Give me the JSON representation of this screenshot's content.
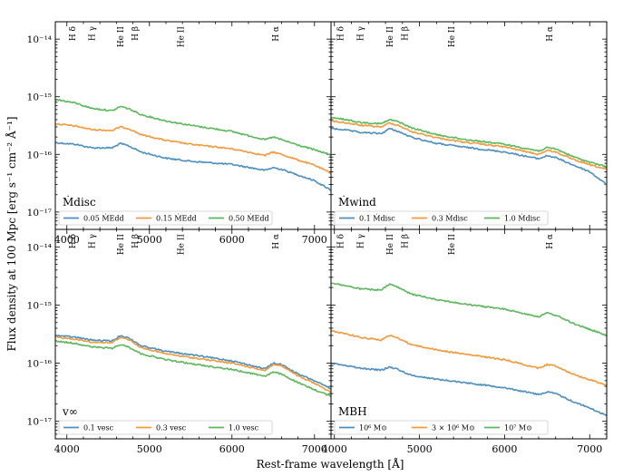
{
  "figure": {
    "ylabel": "Flux density at 100 Mpc [erg s⁻¹ cm⁻² Å⁻¹]",
    "xlabel": "Rest-frame wavelength [Å]"
  },
  "line_markers": [
    {
      "label": "H δ",
      "wavelength": 4102
    },
    {
      "label": "H γ",
      "wavelength": 4340
    },
    {
      "label": "He II",
      "wavelength": 4686
    },
    {
      "label": "H β",
      "wavelength": 4861
    },
    {
      "label": "He II",
      "wavelength": 5412
    },
    {
      "label": "H α",
      "wavelength": 6563
    }
  ],
  "chart_data": [
    {
      "type": "line",
      "panel": "top-left",
      "xlim": [
        3860,
        7200
      ],
      "ylim": [
        5e-18,
        2e-14
      ],
      "yscale": "log",
      "xticks": [
        4000,
        5000,
        6000,
        7000
      ],
      "yticks": [
        "10⁻¹⁴",
        "10⁻¹⁵",
        "10⁻¹⁶",
        "10⁻¹⁷"
      ],
      "panel_label": "Ṁdisc",
      "legend": "bottom-left",
      "series": [
        {
          "name": "0.05 ṀEdd",
          "color": "#4c8fc0",
          "x": [
            3860,
            4100,
            4300,
            4550,
            4650,
            4750,
            4900,
            5200,
            5500,
            6000,
            6400,
            6500,
            6600,
            6800,
            7000,
            7200
          ],
          "y": [
            1.6e-16,
            1.5e-16,
            1.3e-16,
            1.3e-16,
            1.55e-16,
            1.4e-16,
            1.1e-16,
            8.6e-17,
            7.6e-17,
            6.7e-17,
            5.3e-17,
            5.9e-17,
            5.5e-17,
            4.4e-17,
            3.5e-17,
            2.4e-17
          ]
        },
        {
          "name": "0.15 ṀEdd",
          "color": "#f39a3c",
          "x": [
            3860,
            4100,
            4300,
            4550,
            4650,
            4750,
            4900,
            5200,
            5500,
            6000,
            6400,
            6500,
            6600,
            6800,
            7000,
            7200
          ],
          "y": [
            3.4e-16,
            3.1e-16,
            2.7e-16,
            2.6e-16,
            3e-16,
            2.8e-16,
            2.2e-16,
            1.75e-16,
            1.5e-16,
            1.25e-16,
            9.6e-17,
            1.1e-16,
            1e-16,
            8e-17,
            6.5e-17,
            4.7e-17
          ]
        },
        {
          "name": "0.50 ṀEdd",
          "color": "#5cb85c",
          "x": [
            3860,
            4100,
            4300,
            4550,
            4650,
            4750,
            4900,
            5200,
            5500,
            6000,
            6400,
            6500,
            6600,
            6800,
            7000,
            7200
          ],
          "y": [
            9e-16,
            7.8e-16,
            6.3e-16,
            5.7e-16,
            6.8e-16,
            6.2e-16,
            4.9e-16,
            3.8e-16,
            3.2e-16,
            2.5e-16,
            1.8e-16,
            2e-16,
            1.8e-16,
            1.45e-16,
            1.2e-16,
            9.8e-17
          ]
        }
      ]
    },
    {
      "type": "line",
      "panel": "top-right",
      "xlim": [
        3960,
        7200
      ],
      "ylim": [
        5e-18,
        2e-14
      ],
      "yscale": "log",
      "panel_label": "Ṁwind",
      "legend": "bottom-left",
      "series": [
        {
          "name": "0.1 Ṁdisc",
          "color": "#4c8fc0",
          "x": [
            3960,
            4100,
            4300,
            4550,
            4650,
            4750,
            4900,
            5200,
            5500,
            6000,
            6400,
            6500,
            6600,
            6800,
            7000,
            7200
          ],
          "y": [
            2.8e-16,
            2.7e-16,
            2.4e-16,
            2.3e-16,
            2.8e-16,
            2.5e-16,
            2e-16,
            1.55e-16,
            1.35e-16,
            1.1e-16,
            8.4e-17,
            9.5e-17,
            8.8e-17,
            6.6e-17,
            5e-17,
            3e-17
          ]
        },
        {
          "name": "0.3 Ṁdisc",
          "color": "#f39a3c",
          "x": [
            3960,
            4100,
            4300,
            4550,
            4650,
            4750,
            4900,
            5200,
            5500,
            6000,
            6400,
            6500,
            6600,
            6800,
            7000,
            7200
          ],
          "y": [
            3.8e-16,
            3.6e-16,
            3.2e-16,
            3e-16,
            3.5e-16,
            3.2e-16,
            2.5e-16,
            1.95e-16,
            1.65e-16,
            1.35e-16,
            1e-16,
            1.18e-16,
            1.1e-16,
            8.2e-17,
            6.6e-17,
            5.5e-17
          ]
        },
        {
          "name": "1.0 Ṁdisc",
          "color": "#5cb85c",
          "x": [
            3960,
            4100,
            4300,
            4550,
            4650,
            4750,
            4900,
            5200,
            5500,
            6000,
            6400,
            6500,
            6600,
            6800,
            7000,
            7200
          ],
          "y": [
            4.3e-16,
            4.1e-16,
            3.6e-16,
            3.4e-16,
            4e-16,
            3.7e-16,
            2.9e-16,
            2.2e-16,
            1.85e-16,
            1.5e-16,
            1.15e-16,
            1.3e-16,
            1.25e-16,
            9.2e-17,
            7.3e-17,
            6.1e-17
          ]
        }
      ]
    },
    {
      "type": "line",
      "panel": "bottom-left",
      "xlim": [
        3860,
        7200
      ],
      "ylim": [
        5e-18,
        2e-14
      ],
      "yscale": "log",
      "xticks": [
        4000,
        5000,
        6000,
        7000
      ],
      "yticks": [
        "10⁻¹⁴",
        "10⁻¹⁵",
        "10⁻¹⁶",
        "10⁻¹⁷"
      ],
      "panel_label": "v∞",
      "legend": "bottom-left",
      "series": [
        {
          "name": "0.1 vesc",
          "color": "#4c8fc0",
          "x": [
            3860,
            4100,
            4300,
            4550,
            4650,
            4750,
            4900,
            5200,
            5500,
            6000,
            6400,
            6500,
            6600,
            6800,
            7000,
            7200
          ],
          "y": [
            3e-16,
            2.8e-16,
            2.5e-16,
            2.4e-16,
            3e-16,
            2.7e-16,
            2e-16,
            1.6e-16,
            1.4e-16,
            1.1e-16,
            8e-17,
            1e-16,
            9.5e-17,
            6.5e-17,
            5e-17,
            3.6e-17
          ]
        },
        {
          "name": "0.3 vesc",
          "color": "#f39a3c",
          "x": [
            3860,
            4100,
            4300,
            4550,
            4650,
            4750,
            4900,
            5200,
            5500,
            6000,
            6400,
            6500,
            6600,
            6800,
            7000,
            7200
          ],
          "y": [
            2.8e-16,
            2.6e-16,
            2.3e-16,
            2.25e-16,
            2.8e-16,
            2.55e-16,
            1.85e-16,
            1.45e-16,
            1.25e-16,
            1e-16,
            7.5e-17,
            9.5e-17,
            9e-17,
            6e-17,
            4.5e-17,
            3.2e-17
          ]
        },
        {
          "name": "1.0 vesc",
          "color": "#5cb85c",
          "x": [
            3860,
            4100,
            4300,
            4550,
            4650,
            4750,
            4900,
            5200,
            5500,
            6000,
            6400,
            6500,
            6600,
            6800,
            7000,
            7200
          ],
          "y": [
            2.4e-16,
            2.2e-16,
            1.9e-16,
            1.8e-16,
            2.1e-16,
            1.9e-16,
            1.45e-16,
            1.15e-16,
            9.8e-17,
            7.8e-17,
            6e-17,
            7e-17,
            6.5e-17,
            4.6e-17,
            3.5e-17,
            2.7e-17
          ]
        }
      ]
    },
    {
      "type": "line",
      "panel": "bottom-right",
      "xlim": [
        3960,
        7200
      ],
      "ylim": [
        5e-18,
        2e-14
      ],
      "yscale": "log",
      "xticks": [
        4000,
        5000,
        6000,
        7000
      ],
      "panel_label": "MBH",
      "legend": "bottom-left",
      "series": [
        {
          "name": "10⁶ M⊙",
          "color": "#4c8fc0",
          "x": [
            3960,
            4100,
            4300,
            4550,
            4650,
            4750,
            4900,
            5200,
            5500,
            6000,
            6400,
            6500,
            6600,
            6800,
            7000,
            7200
          ],
          "y": [
            1e-16,
            9.4e-17,
            8.2e-17,
            7.6e-17,
            8.6e-17,
            7.8e-17,
            6.2e-17,
            5.3e-17,
            4.7e-17,
            3.8e-17,
            2.9e-17,
            3.2e-17,
            3e-17,
            2.2e-17,
            1.7e-17,
            1.25e-17
          ]
        },
        {
          "name": "3 × 10⁶ M⊙",
          "color": "#f39a3c",
          "x": [
            3960,
            4100,
            4300,
            4550,
            4650,
            4750,
            4900,
            5200,
            5500,
            6000,
            6400,
            6500,
            6600,
            6800,
            7000,
            7200
          ],
          "y": [
            3.6e-16,
            3.3e-16,
            2.8e-16,
            2.5e-16,
            3e-16,
            2.7e-16,
            2.1e-16,
            1.7e-16,
            1.45e-16,
            1.15e-16,
            8.2e-17,
            9.5e-17,
            9e-17,
            6.5e-17,
            5.2e-17,
            4.2e-17
          ]
        },
        {
          "name": "10⁷ M⊙",
          "color": "#5cb85c",
          "x": [
            3960,
            4100,
            4300,
            4550,
            4650,
            4750,
            4900,
            5200,
            5500,
            6000,
            6400,
            6500,
            6600,
            6800,
            7000,
            7200
          ],
          "y": [
            2.4e-15,
            2.2e-15,
            1.9e-15,
            1.8e-15,
            2.3e-15,
            2e-15,
            1.55e-15,
            1.25e-15,
            1.05e-15,
            8.5e-16,
            6.3e-16,
            7.3e-16,
            6.7e-16,
            4.9e-16,
            3.8e-16,
            3e-16
          ]
        }
      ]
    }
  ]
}
